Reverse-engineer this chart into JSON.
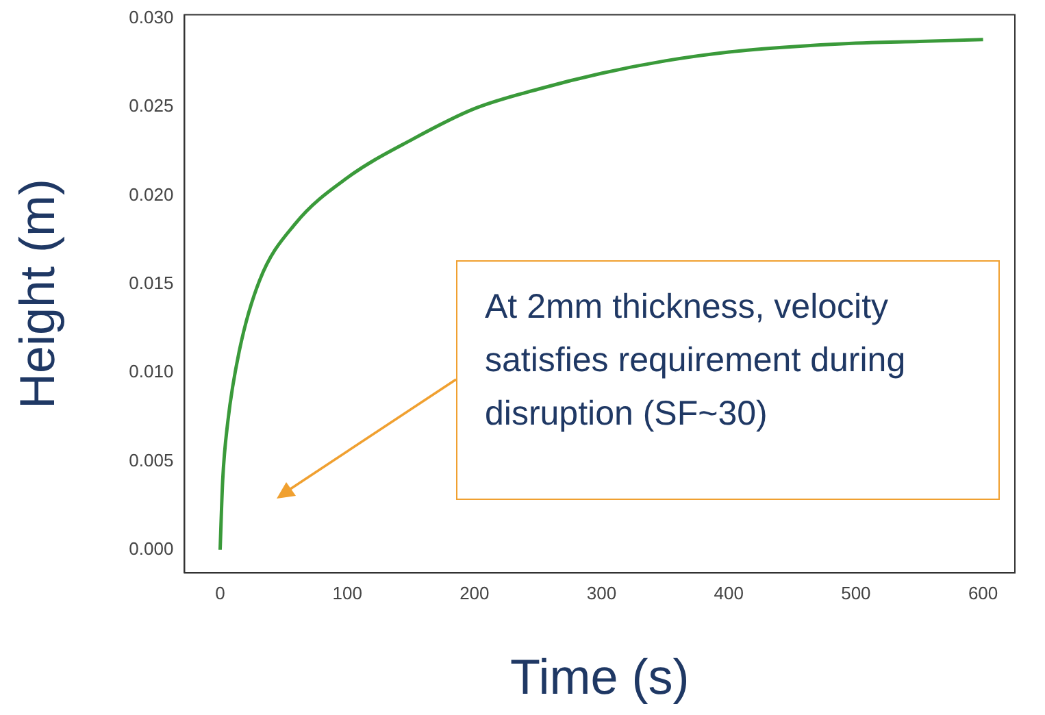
{
  "chart_data": {
    "type": "line",
    "xlabel": "Time (s)",
    "ylabel": "Height (m)",
    "xlim": [
      -28,
      625
    ],
    "ylim": [
      -0.0013,
      0.0302
    ],
    "xticks": [
      0,
      100,
      200,
      300,
      400,
      500,
      600
    ],
    "yticks": [
      {
        "value": 0,
        "label": "0.000"
      },
      {
        "value": 0.005,
        "label": "0.005"
      },
      {
        "value": 0.01,
        "label": "0.010"
      },
      {
        "value": 0.015,
        "label": "0.015"
      },
      {
        "value": 0.02,
        "label": "0.020"
      },
      {
        "value": 0.025,
        "label": "0.025"
      },
      {
        "value": 0.03,
        "label": "0.030"
      }
    ],
    "grid": false,
    "legend": false,
    "marker": "none",
    "line_style": "solid",
    "series": [
      {
        "color": "#3a9a3a",
        "x": [
          0,
          2,
          6,
          15,
          31,
          59,
          100,
          152,
          200,
          250,
          300,
          350,
          400,
          450,
          500,
          550,
          600
        ],
        "values": [
          0,
          0.0039,
          0.0072,
          0.0112,
          0.0152,
          0.0184,
          0.021,
          0.0232,
          0.0249,
          0.026,
          0.0269,
          0.0276,
          0.0281,
          0.0284,
          0.0286,
          0.0287,
          0.0288
        ]
      }
    ],
    "annotations": [
      "At 2mm thickness, velocity satisfies requirement during disruption (SF~30)"
    ]
  }
}
